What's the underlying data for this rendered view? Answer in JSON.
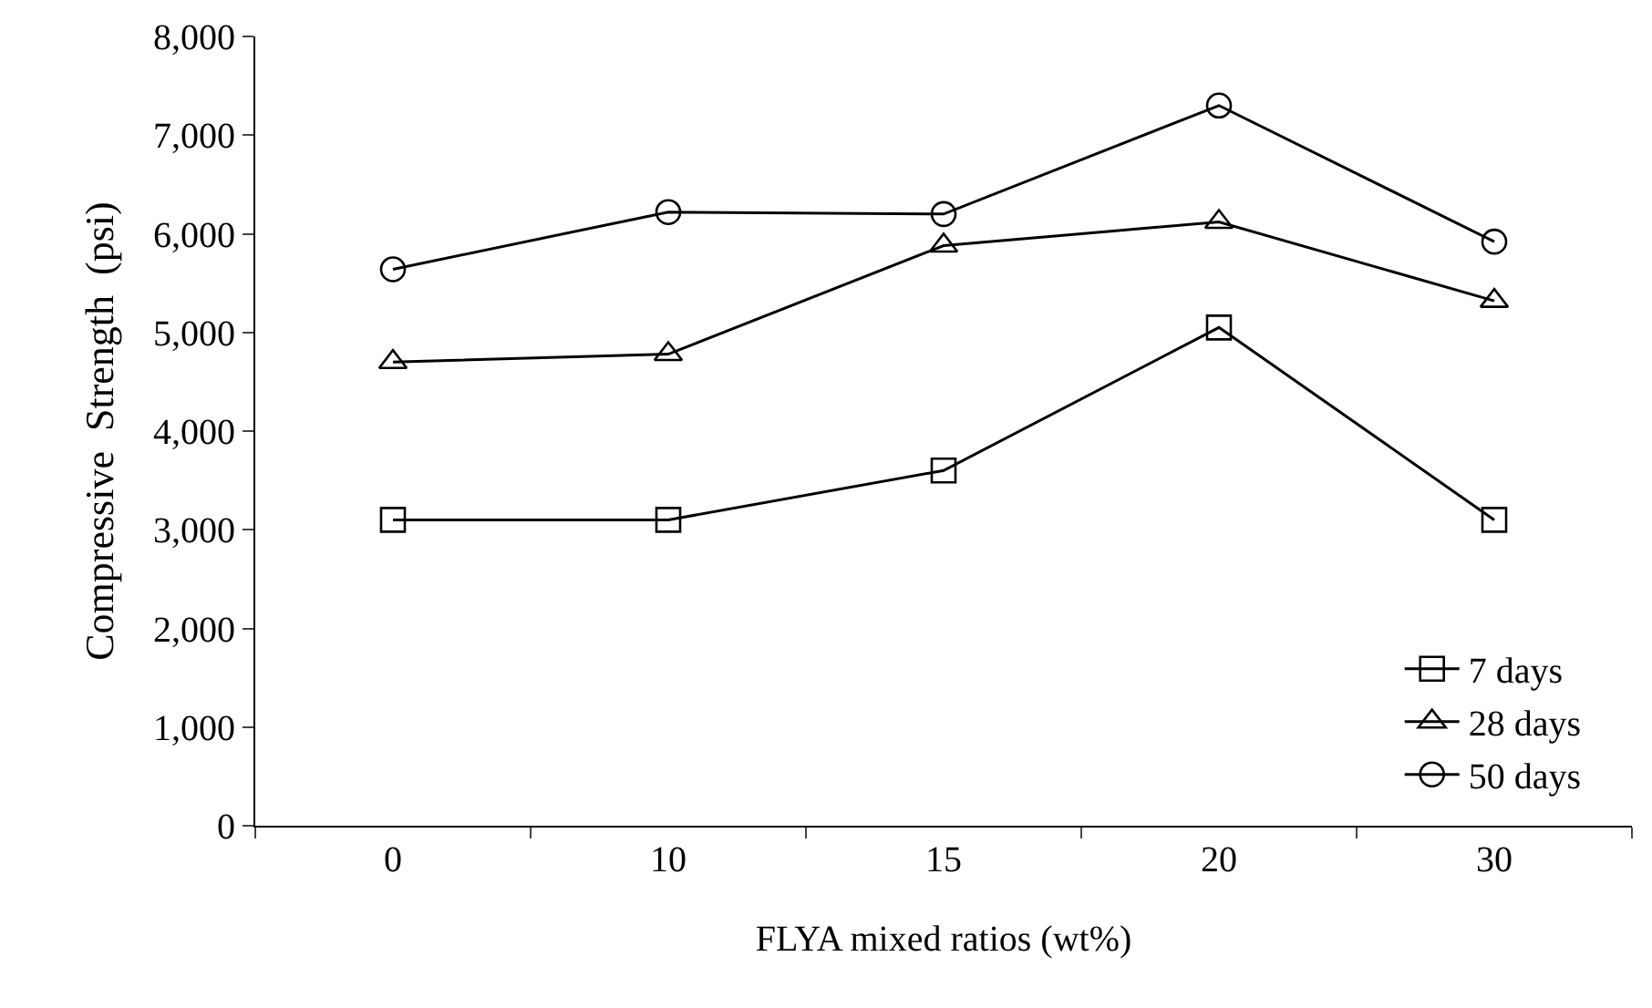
{
  "chart_data": {
    "type": "line",
    "xlabel": "FLYA mixed ratios (wt%)",
    "ylabel": "Compressive  Strength  (psi)",
    "categories": [
      "0",
      "10",
      "15",
      "20",
      "30"
    ],
    "ylim": [
      0,
      8000
    ],
    "yticks": [
      {
        "value": 0,
        "label": "0"
      },
      {
        "value": 1000,
        "label": "1,000"
      },
      {
        "value": 2000,
        "label": "2,000"
      },
      {
        "value": 3000,
        "label": "3,000"
      },
      {
        "value": 4000,
        "label": "4,000"
      },
      {
        "value": 5000,
        "label": "5,000"
      },
      {
        "value": 6000,
        "label": "6,000"
      },
      {
        "value": 7000,
        "label": "7,000"
      },
      {
        "value": 8000,
        "label": "8,000"
      }
    ],
    "legend": "bottom right",
    "line_style": "solid",
    "series": [
      {
        "name": "7 days",
        "color": "#000000",
        "marker": "square",
        "values": [
          3100,
          3100,
          3600,
          5050,
          3100
        ]
      },
      {
        "name": "28 days",
        "color": "#000000",
        "marker": "triangle",
        "values": [
          4700,
          4780,
          5880,
          6120,
          5320
        ]
      },
      {
        "name": "50 days",
        "color": "#000000",
        "marker": "circle",
        "values": [
          5640,
          6220,
          6200,
          7300,
          5920
        ]
      }
    ]
  }
}
